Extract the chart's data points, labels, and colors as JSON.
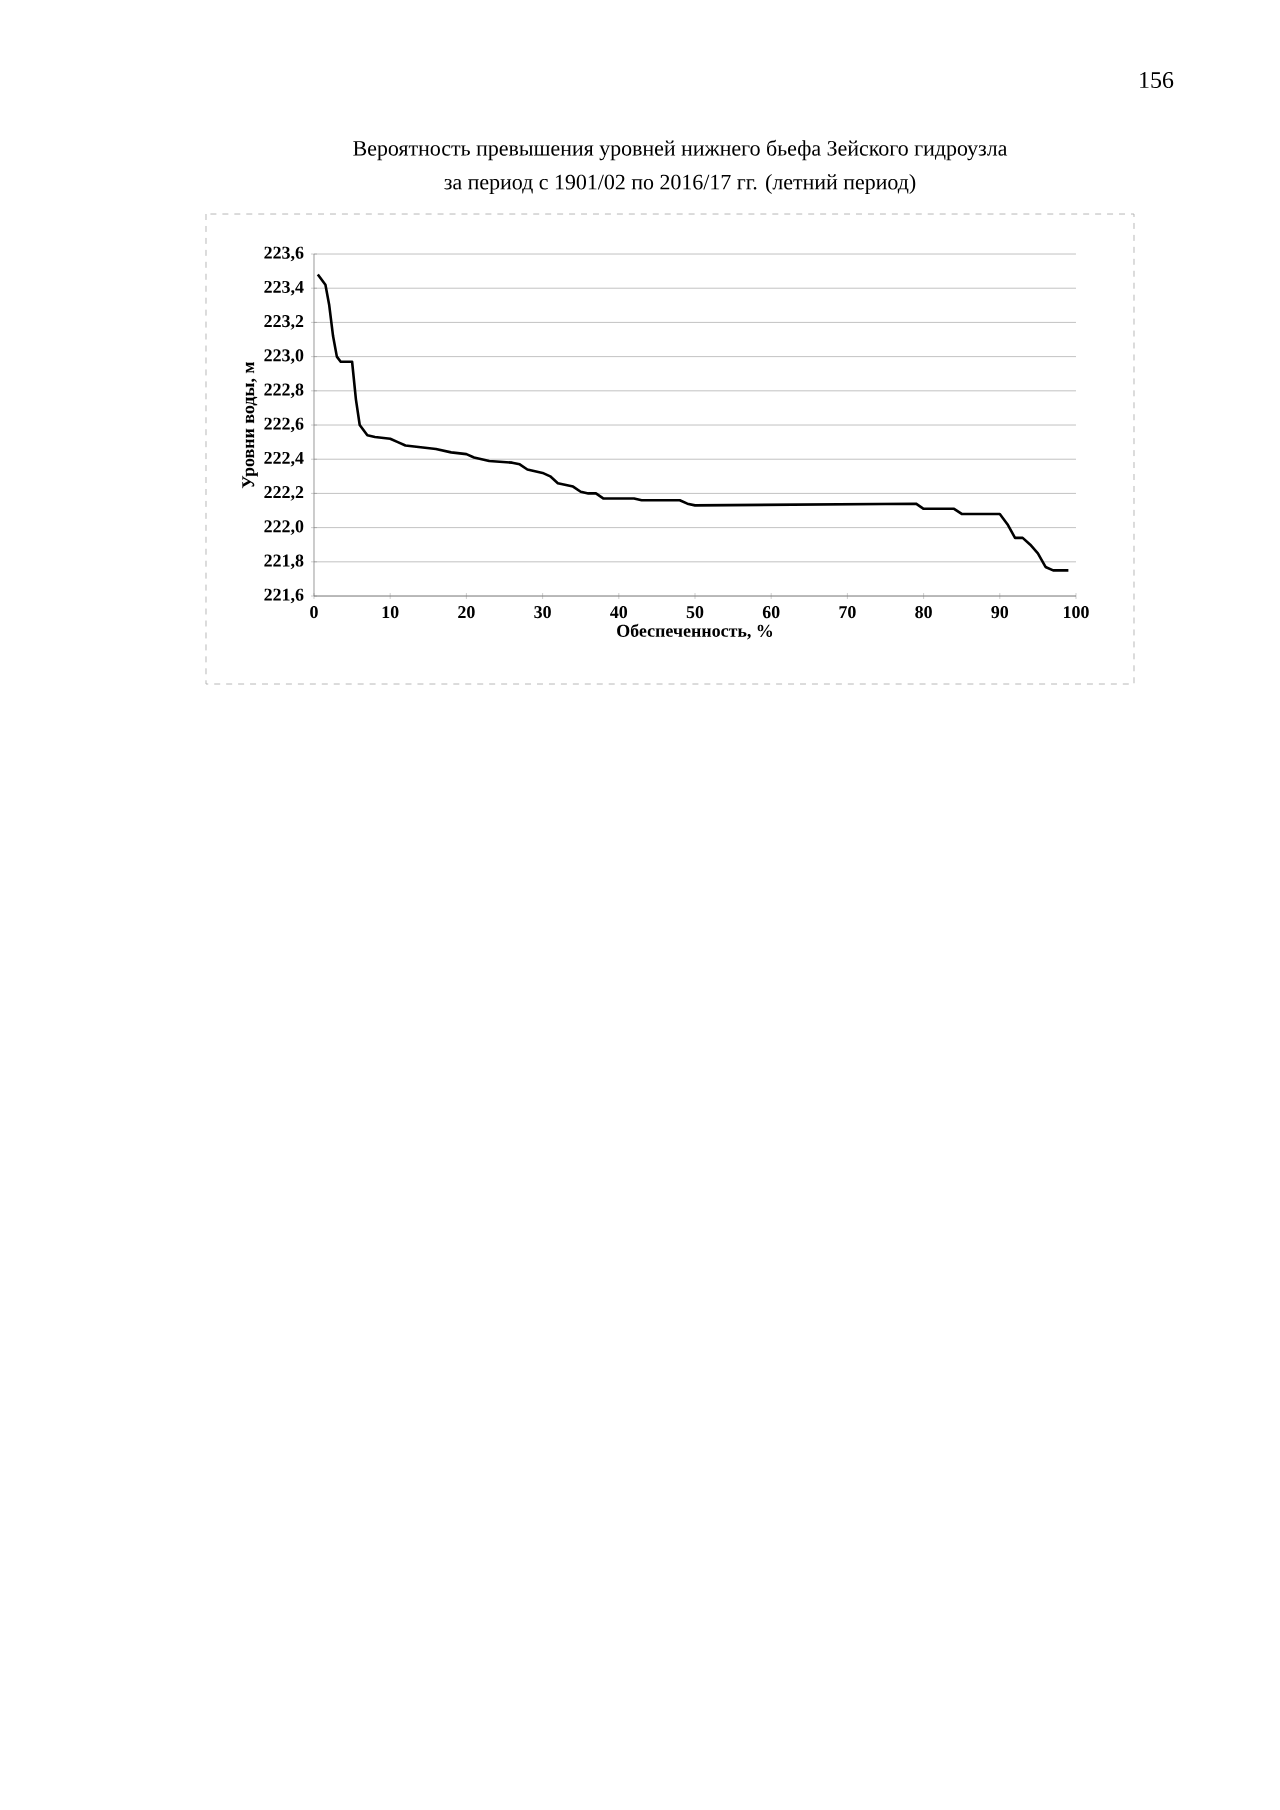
{
  "chart_data": {
    "type": "line",
    "title": "Вероятность превышения уровней нижнего бьефа Зейского гидроузла",
    "subtitle": "за период с 1901/02 по 2016/17 гг. (летний период)",
    "xlabel": "Обеспеченность, %",
    "ylabel": "Уровни воды, м",
    "annotations": [
      "156"
    ],
    "xlim": [
      0,
      100
    ],
    "xticks": [
      0,
      10,
      20,
      30,
      40,
      50,
      60,
      70,
      80,
      90,
      100
    ],
    "ylim": [
      221.6,
      223.6
    ],
    "yticks": [
      {
        "value": 221.6,
        "label": "221,6"
      },
      {
        "value": 221.8,
        "label": "221,8"
      },
      {
        "value": 222.0,
        "label": "222,0"
      },
      {
        "value": 222.2,
        "label": "222,2"
      },
      {
        "value": 222.4,
        "label": "222,4"
      },
      {
        "value": 222.6,
        "label": "222,6"
      },
      {
        "value": 222.8,
        "label": "222,8"
      },
      {
        "value": 223.0,
        "label": "223,0"
      },
      {
        "value": 223.2,
        "label": "223,2"
      },
      {
        "value": 223.4,
        "label": "223,4"
      },
      {
        "value": 223.6,
        "label": "223,6"
      }
    ],
    "grid": "y",
    "marker": "none",
    "line_style": "solid",
    "x": [
      0.5,
      1.5,
      2,
      2.5,
      3,
      3.5,
      5,
      5.5,
      6,
      7,
      8,
      10,
      11,
      12,
      14,
      16,
      18,
      20,
      21,
      23,
      26,
      27,
      28,
      30,
      31,
      32,
      34,
      35,
      36,
      37,
      38,
      42,
      43,
      48,
      49,
      50,
      79,
      80,
      84,
      85,
      90,
      91,
      92,
      93,
      94,
      95,
      96,
      97,
      99
    ],
    "series": [
      {
        "color": "#000000",
        "values": [
          223.48,
          223.42,
          223.3,
          223.12,
          223.0,
          222.97,
          222.97,
          222.75,
          222.6,
          222.54,
          222.53,
          222.52,
          222.5,
          222.48,
          222.47,
          222.46,
          222.44,
          222.43,
          222.41,
          222.39,
          222.38,
          222.37,
          222.34,
          222.32,
          222.3,
          222.26,
          222.24,
          222.21,
          222.2,
          222.2,
          222.17,
          222.17,
          222.16,
          222.16,
          222.14,
          222.13,
          222.14,
          222.11,
          222.11,
          222.08,
          222.08,
          222.02,
          221.94,
          221.94,
          221.9,
          221.85,
          221.77,
          221.75,
          221.75
        ]
      }
    ]
  }
}
